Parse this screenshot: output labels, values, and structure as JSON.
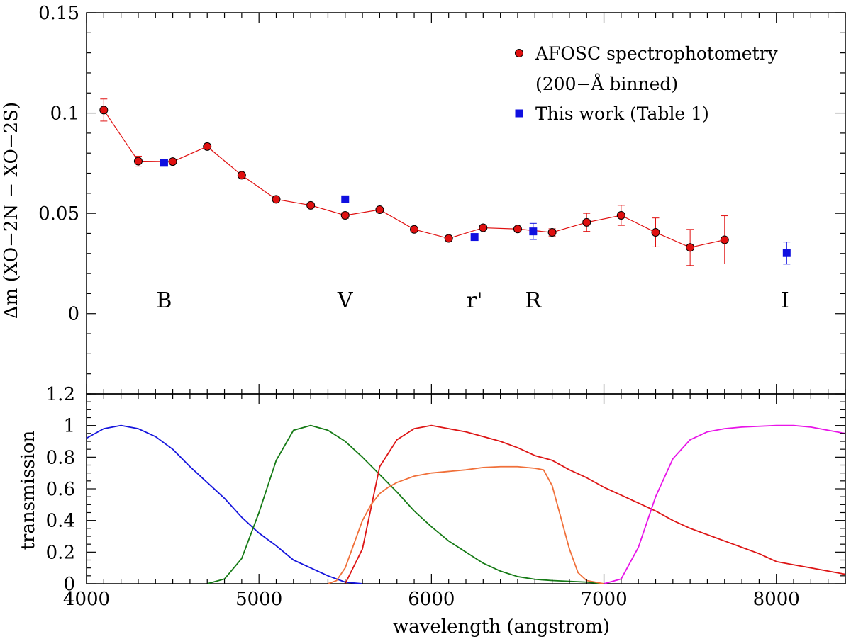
{
  "chart_data": [
    {
      "type": "scatter",
      "ylabel": "Δm (XO−2N − XO−2S)",
      "xlim": [
        4000,
        8400
      ],
      "ylim": [
        -0.04,
        0.15
      ],
      "y_ticks": [
        0,
        0.05,
        0.1,
        0.15
      ],
      "y_tick_labels": [
        "0",
        "0.05",
        "0.1",
        "0.15"
      ],
      "series": [
        {
          "name": "AFOSC spectrophotometry",
          "name_line2": "(200−Å binned)",
          "color": "#e01010",
          "marker": "circle",
          "connected": true,
          "points": [
            {
              "x": 4100,
              "y": 0.1015,
              "err": 0.0055
            },
            {
              "x": 4300,
              "y": 0.076,
              "err": 0.0025
            },
            {
              "x": 4500,
              "y": 0.0758,
              "err": 0.0012
            },
            {
              "x": 4700,
              "y": 0.0833,
              "err": 0.001
            },
            {
              "x": 4900,
              "y": 0.069,
              "err": 0.001
            },
            {
              "x": 5100,
              "y": 0.057,
              "err": 0.001
            },
            {
              "x": 5300,
              "y": 0.054,
              "err": 0.001
            },
            {
              "x": 5500,
              "y": 0.049,
              "err": 0.0015
            },
            {
              "x": 5700,
              "y": 0.0518,
              "err": 0.001
            },
            {
              "x": 5900,
              "y": 0.042,
              "err": 0.001
            },
            {
              "x": 6100,
              "y": 0.0375,
              "err": 0.001
            },
            {
              "x": 6300,
              "y": 0.0428,
              "err": 0.001
            },
            {
              "x": 6500,
              "y": 0.0422,
              "err": 0.001
            },
            {
              "x": 6700,
              "y": 0.0405,
              "err": 0.0018
            },
            {
              "x": 6900,
              "y": 0.0455,
              "err": 0.0045
            },
            {
              "x": 7100,
              "y": 0.049,
              "err": 0.005
            },
            {
              "x": 7300,
              "y": 0.0405,
              "err": 0.0072
            },
            {
              "x": 7500,
              "y": 0.033,
              "err": 0.009
            },
            {
              "x": 7700,
              "y": 0.0368,
              "err": 0.012
            }
          ]
        },
        {
          "name": "This work (Table 1)",
          "color": "#1010e0",
          "marker": "square",
          "connected": false,
          "points": [
            {
              "x": 4450,
              "y": 0.0752,
              "err": 0.0012
            },
            {
              "x": 5500,
              "y": 0.057,
              "err": 0.0015
            },
            {
              "x": 6250,
              "y": 0.0382,
              "err": 0.0012
            },
            {
              "x": 6590,
              "y": 0.041,
              "err": 0.004
            },
            {
              "x": 8060,
              "y": 0.0302,
              "err": 0.0055
            }
          ]
        }
      ],
      "band_labels": [
        {
          "x": 4450,
          "text": "B"
        },
        {
          "x": 5500,
          "text": "V"
        },
        {
          "x": 6250,
          "text": "r'"
        },
        {
          "x": 6590,
          "text": "R"
        },
        {
          "x": 8050,
          "text": "I"
        }
      ],
      "band_label_y": 0.003
    },
    {
      "type": "line",
      "xlabel": "wavelength (angstrom)",
      "ylabel": "transmission",
      "xlim": [
        4000,
        8400
      ],
      "ylim": [
        0,
        1.2
      ],
      "x_ticks": [
        4000,
        5000,
        6000,
        7000,
        8000
      ],
      "x_tick_labels": [
        "4000",
        "5000",
        "6000",
        "7000",
        "8000"
      ],
      "y_ticks": [
        0,
        0.2,
        0.4,
        0.6,
        0.8,
        1,
        1.2
      ],
      "y_tick_labels": [
        "0",
        "0.2",
        "0.4",
        "0.6",
        "0.8",
        "1",
        "1.2"
      ],
      "series": [
        {
          "name": "B",
          "color": "#1515dd",
          "points": [
            [
              4000,
              0.92
            ],
            [
              4100,
              0.98
            ],
            [
              4200,
              1.0
            ],
            [
              4300,
              0.98
            ],
            [
              4400,
              0.93
            ],
            [
              4500,
              0.85
            ],
            [
              4600,
              0.74
            ],
            [
              4700,
              0.64
            ],
            [
              4800,
              0.54
            ],
            [
              4900,
              0.42
            ],
            [
              5000,
              0.32
            ],
            [
              5100,
              0.24
            ],
            [
              5200,
              0.15
            ],
            [
              5300,
              0.1
            ],
            [
              5400,
              0.05
            ],
            [
              5500,
              0.01
            ],
            [
              5600,
              0.0
            ]
          ]
        },
        {
          "name": "V",
          "color": "#157a15",
          "points": [
            [
              4700,
              0.0
            ],
            [
              4800,
              0.03
            ],
            [
              4900,
              0.16
            ],
            [
              5000,
              0.45
            ],
            [
              5100,
              0.78
            ],
            [
              5200,
              0.97
            ],
            [
              5300,
              1.0
            ],
            [
              5400,
              0.97
            ],
            [
              5500,
              0.9
            ],
            [
              5600,
              0.8
            ],
            [
              5700,
              0.69
            ],
            [
              5800,
              0.58
            ],
            [
              5900,
              0.46
            ],
            [
              6000,
              0.36
            ],
            [
              6100,
              0.27
            ],
            [
              6200,
              0.2
            ],
            [
              6300,
              0.13
            ],
            [
              6400,
              0.08
            ],
            [
              6500,
              0.045
            ],
            [
              6600,
              0.028
            ],
            [
              6700,
              0.02
            ],
            [
              6800,
              0.015
            ],
            [
              6900,
              0.01
            ],
            [
              7000,
              0.0
            ]
          ]
        },
        {
          "name": "R",
          "color": "#dd1515",
          "points": [
            [
              5500,
              0.0
            ],
            [
              5600,
              0.22
            ],
            [
              5700,
              0.74
            ],
            [
              5800,
              0.91
            ],
            [
              5900,
              0.98
            ],
            [
              6000,
              1.0
            ],
            [
              6100,
              0.98
            ],
            [
              6200,
              0.96
            ],
            [
              6300,
              0.93
            ],
            [
              6400,
              0.9
            ],
            [
              6500,
              0.86
            ],
            [
              6600,
              0.81
            ],
            [
              6700,
              0.78
            ],
            [
              6800,
              0.72
            ],
            [
              6900,
              0.67
            ],
            [
              7000,
              0.61
            ],
            [
              7100,
              0.56
            ],
            [
              7200,
              0.51
            ],
            [
              7300,
              0.46
            ],
            [
              7400,
              0.4
            ],
            [
              7500,
              0.35
            ],
            [
              7600,
              0.31
            ],
            [
              7700,
              0.27
            ],
            [
              7800,
              0.23
            ],
            [
              7900,
              0.19
            ],
            [
              8000,
              0.14
            ],
            [
              8100,
              0.12
            ],
            [
              8200,
              0.1
            ],
            [
              8300,
              0.08
            ],
            [
              8400,
              0.06
            ]
          ]
        },
        {
          "name": "r'",
          "color": "#f0703a",
          "points": [
            [
              5400,
              0.0
            ],
            [
              5450,
              0.02
            ],
            [
              5500,
              0.1
            ],
            [
              5550,
              0.25
            ],
            [
              5600,
              0.4
            ],
            [
              5650,
              0.5
            ],
            [
              5700,
              0.57
            ],
            [
              5750,
              0.61
            ],
            [
              5800,
              0.64
            ],
            [
              5900,
              0.68
            ],
            [
              6000,
              0.7
            ],
            [
              6100,
              0.71
            ],
            [
              6200,
              0.72
            ],
            [
              6300,
              0.735
            ],
            [
              6400,
              0.74
            ],
            [
              6500,
              0.74
            ],
            [
              6600,
              0.73
            ],
            [
              6650,
              0.72
            ],
            [
              6700,
              0.62
            ],
            [
              6750,
              0.42
            ],
            [
              6800,
              0.22
            ],
            [
              6850,
              0.07
            ],
            [
              6900,
              0.02
            ],
            [
              7000,
              0.0
            ]
          ]
        },
        {
          "name": "I",
          "color": "#e814e8",
          "points": [
            [
              7000,
              0.0
            ],
            [
              7100,
              0.03
            ],
            [
              7200,
              0.23
            ],
            [
              7300,
              0.55
            ],
            [
              7400,
              0.79
            ],
            [
              7500,
              0.91
            ],
            [
              7600,
              0.96
            ],
            [
              7700,
              0.98
            ],
            [
              7800,
              0.99
            ],
            [
              7900,
              0.995
            ],
            [
              8000,
              1.0
            ],
            [
              8100,
              1.0
            ],
            [
              8200,
              0.99
            ],
            [
              8300,
              0.97
            ],
            [
              8400,
              0.95
            ]
          ]
        }
      ]
    }
  ]
}
